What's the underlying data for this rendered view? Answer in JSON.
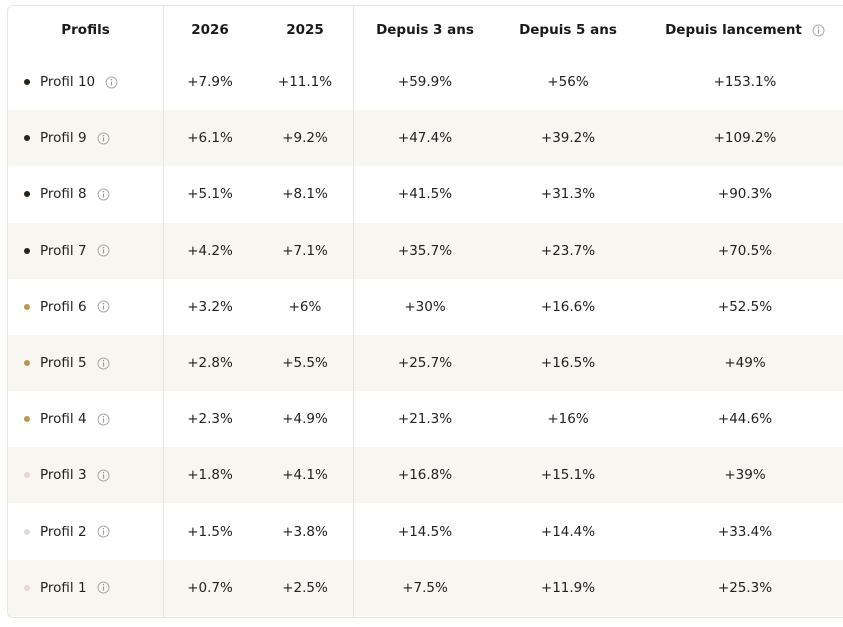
{
  "table": {
    "headers": [
      "Profils",
      "2026",
      "2025",
      "Depuis 3 ans",
      "Depuis 5 ans",
      "Depuis lancement"
    ],
    "rows": [
      {
        "name": "Profil 10",
        "dot": "#2a211a",
        "values": [
          "+7.9%",
          "+11.1%",
          "+59.9%",
          "+56%",
          "+153.1%"
        ]
      },
      {
        "name": "Profil 9",
        "dot": "#2a211a",
        "values": [
          "+6.1%",
          "+9.2%",
          "+47.4%",
          "+39.2%",
          "+109.2%"
        ]
      },
      {
        "name": "Profil 8",
        "dot": "#2a211a",
        "values": [
          "+5.1%",
          "+8.1%",
          "+41.5%",
          "+31.3%",
          "+90.3%"
        ]
      },
      {
        "name": "Profil 7",
        "dot": "#2a211a",
        "values": [
          "+4.2%",
          "+7.1%",
          "+35.7%",
          "+23.7%",
          "+70.5%"
        ]
      },
      {
        "name": "Profil 6",
        "dot": "#b8974f",
        "values": [
          "+3.2%",
          "+6%",
          "+30%",
          "+16.6%",
          "+52.5%"
        ]
      },
      {
        "name": "Profil 5",
        "dot": "#b8974f",
        "values": [
          "+2.8%",
          "+5.5%",
          "+25.7%",
          "+16.5%",
          "+49%"
        ]
      },
      {
        "name": "Profil 4",
        "dot": "#b8974f",
        "values": [
          "+2.3%",
          "+4.9%",
          "+21.3%",
          "+16%",
          "+44.6%"
        ]
      },
      {
        "name": "Profil 3",
        "dot": "#ecd6d2",
        "values": [
          "+1.8%",
          "+4.1%",
          "+16.8%",
          "+15.1%",
          "+39%"
        ]
      },
      {
        "name": "Profil 2",
        "dot": "#dcdcdc",
        "values": [
          "+1.5%",
          "+3.8%",
          "+14.5%",
          "+14.4%",
          "+33.4%"
        ]
      },
      {
        "name": "Profil 1",
        "dot": "#ecd6d2",
        "values": [
          "+0.7%",
          "+2.5%",
          "+7.5%",
          "+11.9%",
          "+25.3%"
        ]
      }
    ]
  }
}
